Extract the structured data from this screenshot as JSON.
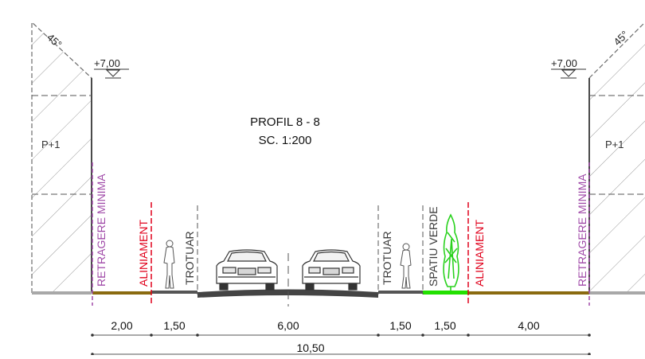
{
  "title": {
    "line1": "PROFIL 8 - 8",
    "line2": "SC. 1:200"
  },
  "levels": {
    "left": "+7,00",
    "right": "+7,00"
  },
  "angles": {
    "left": "45°",
    "right": "45°"
  },
  "buildings": {
    "left_label": "P+1",
    "right_label": "P+1"
  },
  "labels": {
    "retragere_left": "RETRAGERE MINIMA",
    "aliniament_left": "ALINIAMENT",
    "trotuar_left": "TROTUAR",
    "trotuar_right": "TROTUAR",
    "spatiu_verde": "SPATIU VERDE",
    "aliniament_right": "ALINIAMENT",
    "retragere_right": "RETRAGERE MINIMA"
  },
  "dimensions": {
    "segments": [
      "2,00",
      "1,50",
      "6,00",
      "1,50",
      "1,50",
      "4,00"
    ],
    "total": "10,50"
  },
  "colors": {
    "setback_line": "#a04aa8",
    "alignment_line": "#e0001b",
    "green_strip": "#22e000",
    "ground_brown": "#8a6a10",
    "sidewalk": "#555555",
    "tree": "#2bd21f"
  }
}
